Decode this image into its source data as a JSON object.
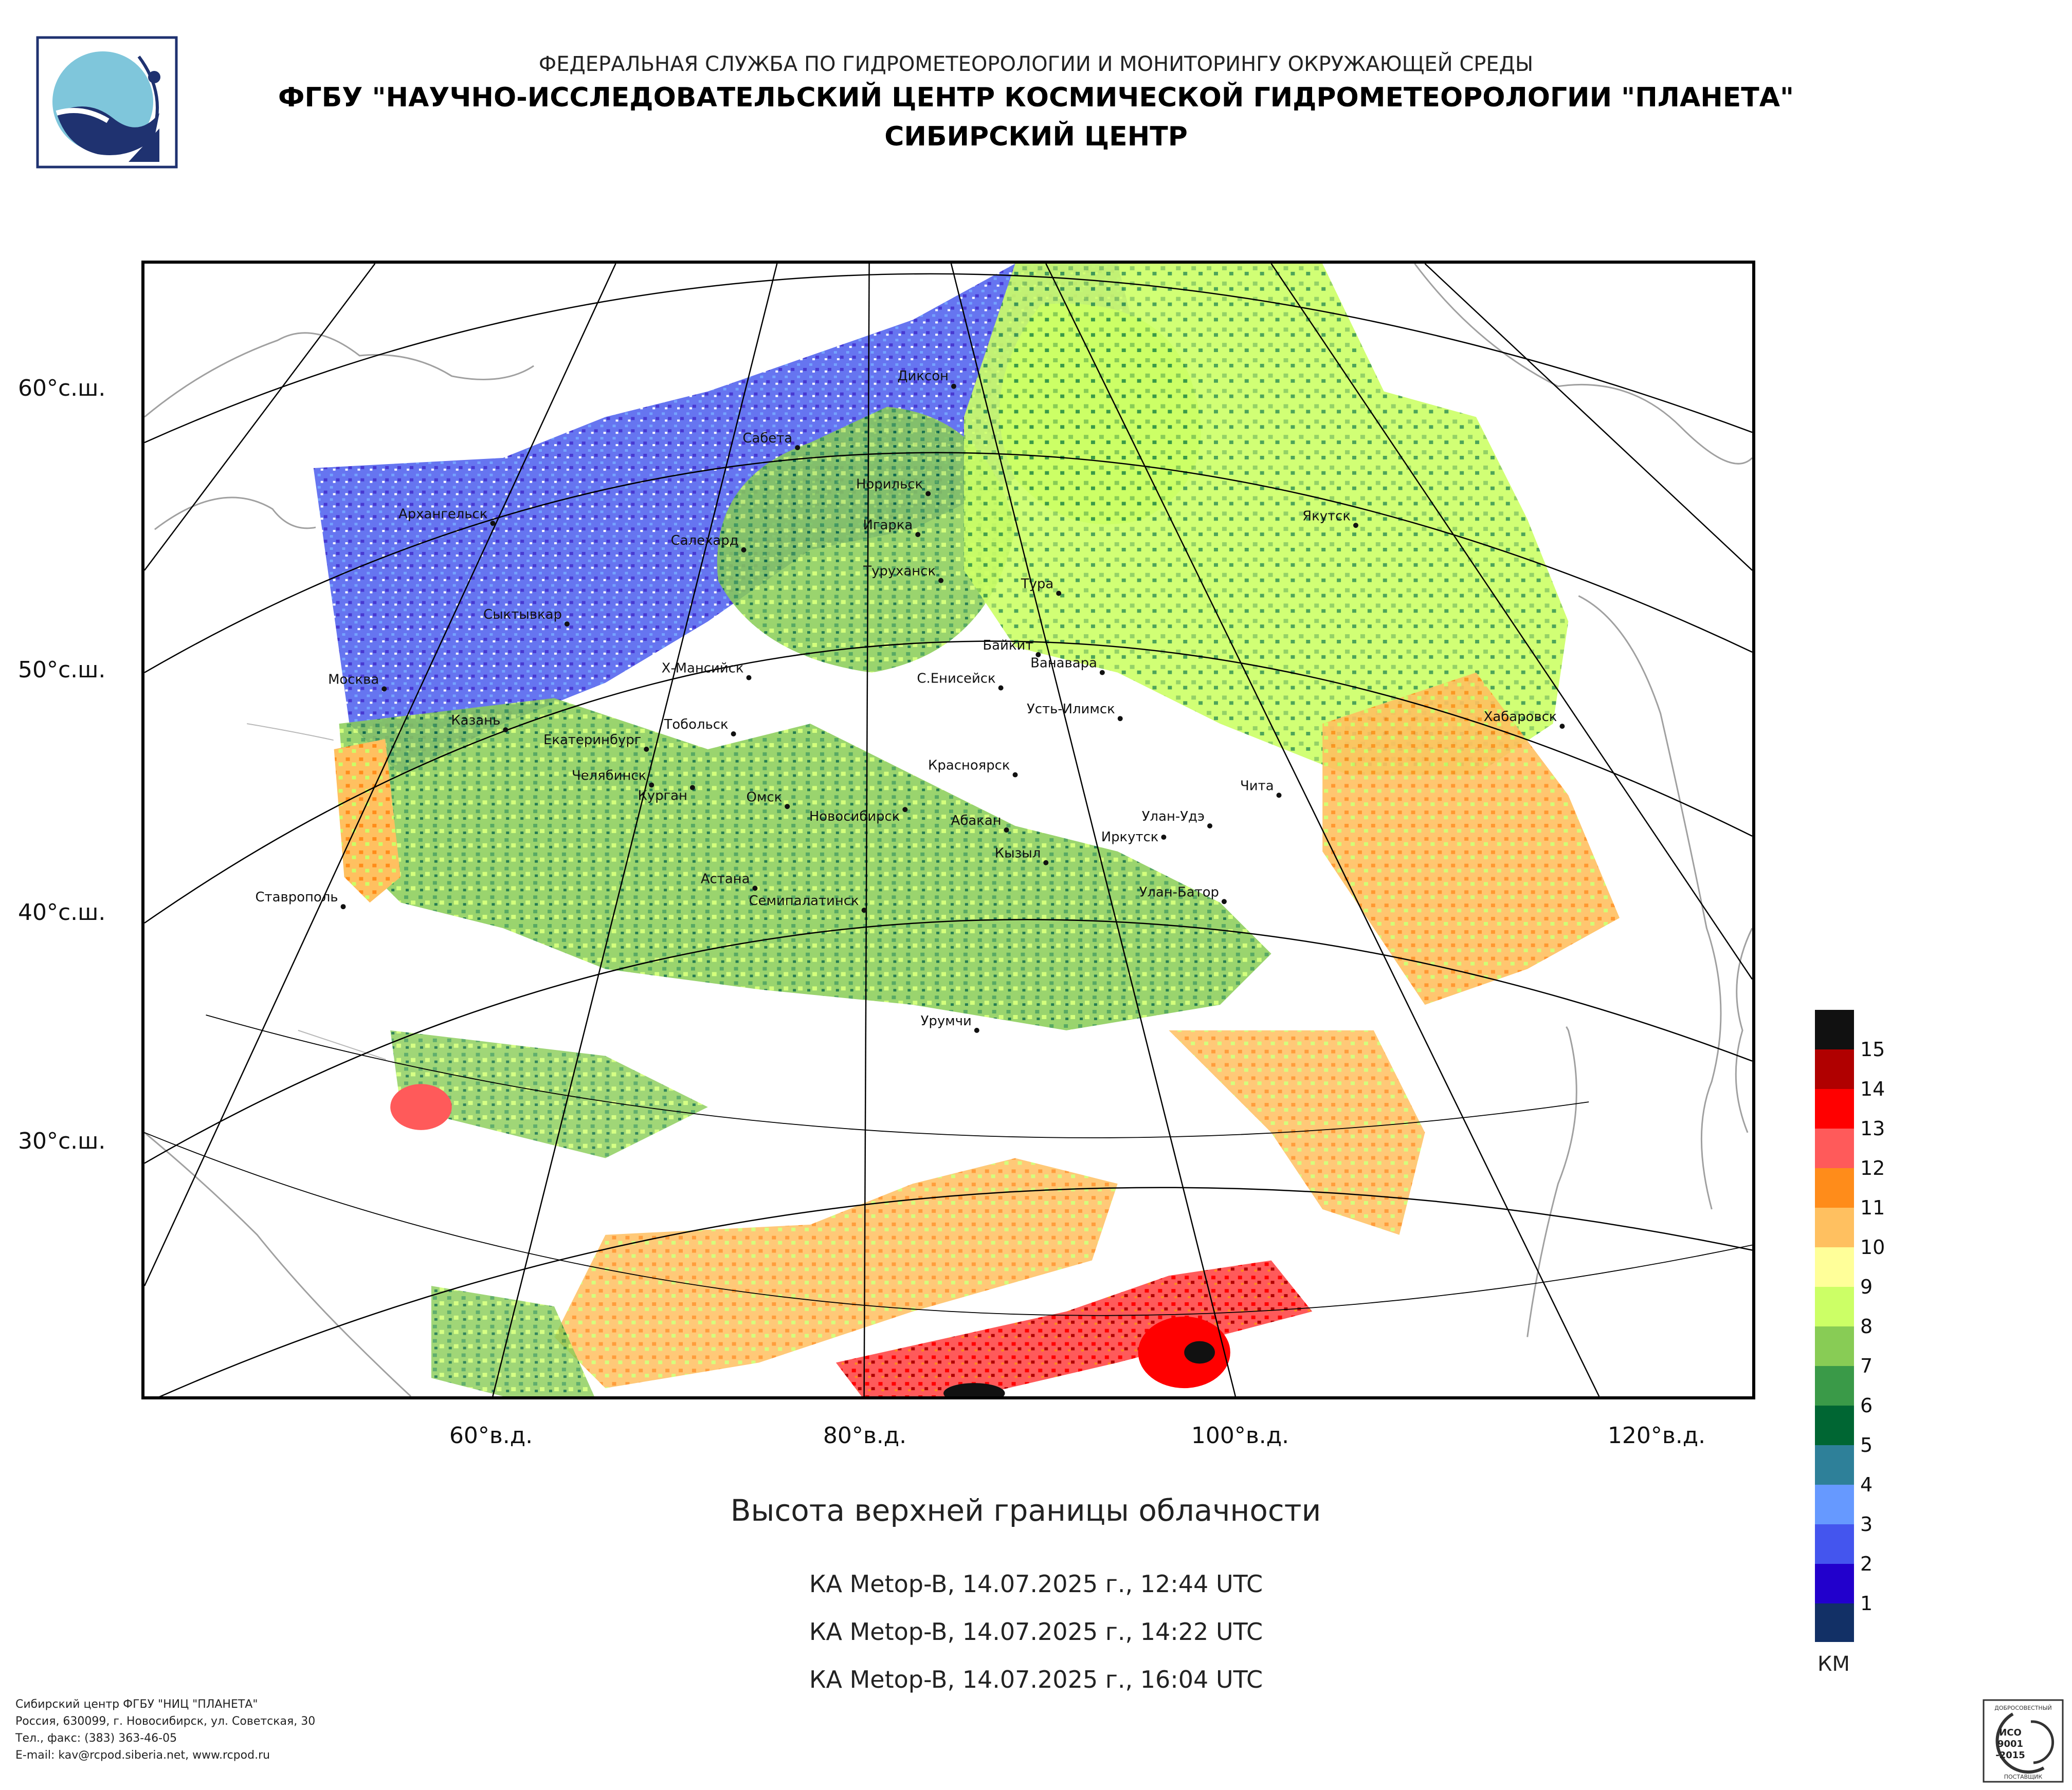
{
  "header": {
    "line1": "ФЕДЕРАЛЬНАЯ СЛУЖБА ПО ГИДРОМЕТЕОРОЛОГИИ И МОНИТОРИНГУ ОКРУЖАЮЩЕЙ СРЕДЫ",
    "line2": "ФГБУ \"НАУЧНО-ИССЛЕДОВАТЕЛЬСКИЙ ЦЕНТР КОСМИЧЕСКОЙ ГИДРОМЕТЕОРОЛОГИИ \"ПЛАНЕТА\"",
    "line3": "СИБИРСКИЙ ЦЕНТР"
  },
  "map": {
    "lat_labels": [
      "60°с.ш.",
      "50°с.ш.",
      "40°с.ш.",
      "30°с.ш."
    ],
    "lon_labels": [
      "60°в.д.",
      "80°в.д.",
      "100°в.д.",
      "120°в.д."
    ],
    "cities": [
      "Диксон",
      "Сабета",
      "Норильск",
      "Архангельск",
      "Салехард",
      "Игарка",
      "Якутск",
      "Туруханск",
      "Тура",
      "Сыктывкар",
      "Байкит",
      "Ванавара",
      "Москва",
      "Х-Мансийск",
      "С.Енисейск",
      "Усть-Илимск",
      "Хабаровск",
      "Казань",
      "Тобольск",
      "Екатеринбург",
      "Челябинск",
      "Красноярск",
      "Курган",
      "Омск",
      "Чита",
      "Новосибирск",
      "Абакан",
      "Улан-Удэ",
      "Иркутск",
      "Кызыл",
      "Астана",
      "Ставрополь",
      "Улан-Батор",
      "Семипалатинск",
      "Урумчи"
    ],
    "colors": {
      "land_outline": "#9a9a9a",
      "graticule": "#000000"
    }
  },
  "legend": {
    "unit": "КМ",
    "ticks": [
      "15",
      "14",
      "13",
      "12",
      "11",
      "10",
      "9",
      "8",
      "7",
      "6",
      "5",
      "4",
      "3",
      "2",
      "1"
    ],
    "colors_top_to_bottom": [
      "#111111",
      "#b00000",
      "#ff0000",
      "#ff5a5a",
      "#ff8c1a",
      "#ffc060",
      "#ffff99",
      "#ccff66",
      "#88cc55",
      "#3a9a48",
      "#006633",
      "#2e8099",
      "#6699ff",
      "#4455ee",
      "#2200cc",
      "#123066"
    ]
  },
  "product": {
    "title": "Высота верхней границы облачности",
    "passes": [
      "КА Metop-B, 14.07.2025 г., 12:44 UTC",
      "КА Metop-B, 14.07.2025 г., 14:22 UTC",
      "КА Metop-B, 14.07.2025 г., 16:04 UTC"
    ]
  },
  "footer": {
    "lines": [
      "Сибирский центр ФГБУ \"НИЦ \"ПЛАНЕТА\"",
      "Россия, 630099, г. Новосибирск, ул. Советская, 30",
      "Тел., факс: (383) 363-46-05",
      "E-mail: kav@rcpod.siberia.net, www.rcpod.ru"
    ]
  },
  "iso_badge": {
    "top": "ДОБРОСОВЕСТНЫЙ",
    "mid1": "ИСО",
    "mid2": "9001",
    "mid3": "-2015",
    "bottom": "ПОСТАВЩИК"
  }
}
